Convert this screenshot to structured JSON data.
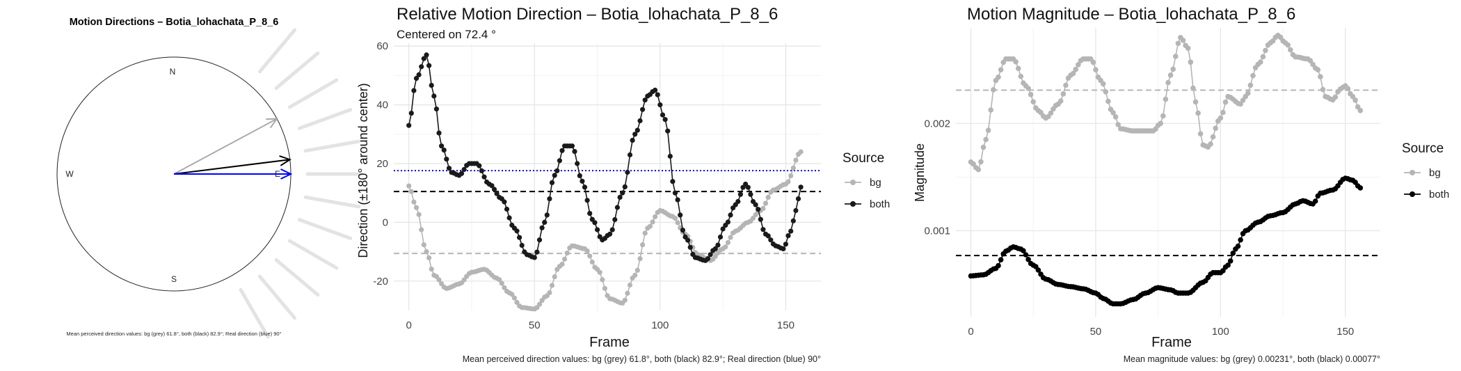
{
  "chart_data": [
    {
      "type": "polar-compass",
      "title": "Motion Directions – Botia_lohachata_P_8_6",
      "cardinal_labels": [
        "N",
        "E",
        "S",
        "W"
      ],
      "arrows": [
        {
          "name": "bg",
          "angle_deg": 61.8,
          "color": "#aaaaaa"
        },
        {
          "name": "both",
          "angle_deg": 82.9,
          "color": "#000000"
        },
        {
          "name": "real",
          "angle_deg": 90,
          "color": "#0000ff"
        }
      ],
      "faint_rays_deg": [
        40,
        50,
        60,
        70,
        80,
        90,
        100,
        110,
        120,
        130,
        140,
        150
      ],
      "ray_color": "#e3e3e3",
      "caption": "Mean perceived direction values: bg (grey) 61.8°, both (black) 82.9°; Real direction (blue) 90°"
    },
    {
      "type": "line",
      "title": "Relative Motion Direction – Botia_lohachata_P_8_6",
      "subtitle": "Centered on  72.4 °",
      "xlabel": "Frame",
      "ylabel": "Direction (±180° around center)",
      "xlim": [
        -6,
        164
      ],
      "ylim": [
        -30,
        61
      ],
      "xticks": [
        0,
        50,
        100,
        150
      ],
      "yticks": [
        -20,
        0,
        20,
        40,
        60
      ],
      "grid": true,
      "legend_title": "Source",
      "legend_position": "right",
      "n_frames": 157,
      "series": [
        {
          "name": "bg",
          "color": "#b5b5b5",
          "knots": [
            [
              0,
              12.4
            ],
            [
              3,
              5
            ],
            [
              7,
              -10
            ],
            [
              10,
              -18
            ],
            [
              15,
              -22.5
            ],
            [
              20,
              -21
            ],
            [
              25,
              -17
            ],
            [
              30,
              -16
            ],
            [
              35,
              -19
            ],
            [
              40,
              -24
            ],
            [
              45,
              -29
            ],
            [
              50,
              -29.5
            ],
            [
              55,
              -25
            ],
            [
              60,
              -15
            ],
            [
              65,
              -8
            ],
            [
              70,
              -9
            ],
            [
              75,
              -16
            ],
            [
              80,
              -26
            ],
            [
              85,
              -27.5
            ],
            [
              90,
              -18
            ],
            [
              95,
              -2
            ],
            [
              100,
              4
            ],
            [
              105,
              2
            ],
            [
              110,
              -4
            ],
            [
              115,
              -11
            ],
            [
              120,
              -13
            ],
            [
              125,
              -9
            ],
            [
              130,
              -3
            ],
            [
              135,
              0
            ],
            [
              140,
              4
            ],
            [
              145,
              11
            ],
            [
              150,
              13
            ],
            [
              156,
              24
            ]
          ]
        },
        {
          "name": "both",
          "color": "#1a1a1a",
          "knots": [
            [
              0,
              33
            ],
            [
              3,
              49
            ],
            [
              7,
              57
            ],
            [
              10,
              43
            ],
            [
              13,
              26
            ],
            [
              17,
              17
            ],
            [
              20,
              16
            ],
            [
              24,
              20
            ],
            [
              27,
              20
            ],
            [
              32,
              13
            ],
            [
              37,
              8
            ],
            [
              42,
              -2
            ],
            [
              47,
              -11
            ],
            [
              50,
              -12
            ],
            [
              54,
              0
            ],
            [
              58,
              16
            ],
            [
              62,
              26
            ],
            [
              65,
              26
            ],
            [
              69,
              14
            ],
            [
              73,
              1
            ],
            [
              77,
              -6
            ],
            [
              80,
              -4
            ],
            [
              85,
              10
            ],
            [
              90,
              30
            ],
            [
              95,
              43
            ],
            [
              98,
              45
            ],
            [
              102,
              35
            ],
            [
              106,
              10
            ],
            [
              110,
              -5
            ],
            [
              114,
              -12
            ],
            [
              118,
              -13
            ],
            [
              122,
              -9
            ],
            [
              126,
              -1
            ],
            [
              130,
              6
            ],
            [
              134,
              13
            ],
            [
              138,
              6
            ],
            [
              142,
              -4
            ],
            [
              146,
              -8
            ],
            [
              149,
              -9
            ],
            [
              152,
              -3
            ],
            [
              154,
              4
            ],
            [
              156,
              12
            ]
          ]
        }
      ],
      "hlines": [
        {
          "y": 17.6,
          "color": "#0000ff",
          "style": "dotted"
        },
        {
          "y": 10.5,
          "color": "#000000",
          "style": "dashed"
        },
        {
          "y": -10.6,
          "color": "#b5b5b5",
          "style": "dashed"
        }
      ],
      "caption": "Mean perceived direction values: bg (grey) 61.8°, both (black) 82.9°; Real direction (blue) 90°"
    },
    {
      "type": "line",
      "title": "Motion Magnitude – Botia_lohachata_P_8_6",
      "xlabel": "Frame",
      "ylabel": "Magnitude",
      "xlim": [
        -6,
        164
      ],
      "ylim": [
        0.0002,
        0.00289
      ],
      "xticks": [
        0,
        50,
        100,
        150
      ],
      "yticks": [
        0.001,
        0.002
      ],
      "ytick_labels": [
        "0.001",
        "0.002"
      ],
      "grid": true,
      "legend_title": "Source",
      "legend_position": "right",
      "n_frames": 157,
      "series": [
        {
          "name": "bg",
          "color": "#b5b5b5",
          "knots": [
            [
              0,
              0.00164
            ],
            [
              3,
              0.00157
            ],
            [
              6,
              0.00185
            ],
            [
              10,
              0.0024
            ],
            [
              14,
              0.0026
            ],
            [
              17,
              0.0026
            ],
            [
              22,
              0.00235
            ],
            [
              27,
              0.00212
            ],
            [
              30,
              0.00205
            ],
            [
              35,
              0.00218
            ],
            [
              40,
              0.00245
            ],
            [
              45,
              0.0026
            ],
            [
              48,
              0.0026
            ],
            [
              52,
              0.0024
            ],
            [
              57,
              0.0021
            ],
            [
              60,
              0.00195
            ],
            [
              65,
              0.00193
            ],
            [
              70,
              0.00193
            ],
            [
              73,
              0.00193
            ],
            [
              76,
              0.002
            ],
            [
              80,
              0.00245
            ],
            [
              84,
              0.0028
            ],
            [
              87,
              0.0027
            ],
            [
              90,
              0.0022
            ],
            [
              93,
              0.0018
            ],
            [
              95,
              0.00178
            ],
            [
              100,
              0.00205
            ],
            [
              103,
              0.00225
            ],
            [
              108,
              0.00218
            ],
            [
              110,
              0.00225
            ],
            [
              115,
              0.00255
            ],
            [
              120,
              0.00275
            ],
            [
              123,
              0.00282
            ],
            [
              126,
              0.00275
            ],
            [
              130,
              0.00262
            ],
            [
              135,
              0.0026
            ],
            [
              139,
              0.0025
            ],
            [
              142,
              0.00225
            ],
            [
              145,
              0.00222
            ],
            [
              148,
              0.00232
            ],
            [
              150,
              0.00235
            ],
            [
              153,
              0.00225
            ],
            [
              156,
              0.00212
            ]
          ]
        },
        {
          "name": "both",
          "color": "#000000",
          "knots": [
            [
              0,
              0.00058
            ],
            [
              5,
              0.00059
            ],
            [
              10,
              0.00065
            ],
            [
              14,
              0.00081
            ],
            [
              17,
              0.00085
            ],
            [
              20,
              0.00083
            ],
            [
              25,
              0.00068
            ],
            [
              30,
              0.00055
            ],
            [
              35,
              0.0005
            ],
            [
              40,
              0.00048
            ],
            [
              45,
              0.00046
            ],
            [
              50,
              0.00042
            ],
            [
              53,
              0.00037
            ],
            [
              57,
              0.00032
            ],
            [
              60,
              0.00032
            ],
            [
              65,
              0.00036
            ],
            [
              70,
              0.00042
            ],
            [
              75,
              0.00047
            ],
            [
              80,
              0.00045
            ],
            [
              83,
              0.00042
            ],
            [
              87,
              0.00042
            ],
            [
              93,
              0.00052
            ],
            [
              97,
              0.00061
            ],
            [
              100,
              0.00061
            ],
            [
              103,
              0.00068
            ],
            [
              106,
              0.00083
            ],
            [
              110,
              0.001
            ],
            [
              115,
              0.00108
            ],
            [
              120,
              0.00114
            ],
            [
              125,
              0.00117
            ],
            [
              130,
              0.00125
            ],
            [
              133,
              0.00128
            ],
            [
              137,
              0.00125
            ],
            [
              140,
              0.00135
            ],
            [
              145,
              0.00138
            ],
            [
              150,
              0.00149
            ],
            [
              153,
              0.00147
            ],
            [
              156,
              0.0014
            ]
          ]
        }
      ],
      "hlines": [
        {
          "y": 0.00231,
          "color": "#b5b5b5",
          "style": "dashed"
        },
        {
          "y": 0.00077,
          "color": "#000000",
          "style": "dashed"
        }
      ],
      "caption": "Mean magnitude values: bg (grey) 0.00231°, both (black) 0.00077°"
    }
  ]
}
